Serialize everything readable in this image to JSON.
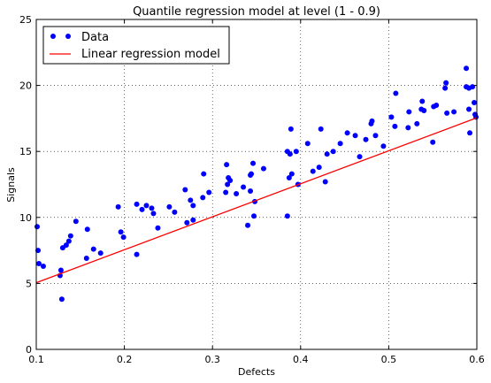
{
  "chart_data": {
    "type": "scatter",
    "title": "Quantile regression model at level (1 - 0.9)",
    "xlabel": "Defects",
    "ylabel": "Signals",
    "xlim": [
      0.1,
      0.6
    ],
    "ylim": [
      0,
      25
    ],
    "xticks": [
      0.1,
      0.2,
      0.3,
      0.4,
      0.5,
      0.6
    ],
    "xtick_labels": [
      "0.1",
      "0.2",
      "0.3",
      "0.4",
      "0.5",
      "0.6"
    ],
    "yticks": [
      0,
      5,
      10,
      15,
      20,
      25
    ],
    "ytick_labels": [
      "0",
      "5",
      "10",
      "15",
      "20",
      "25"
    ],
    "grid": true,
    "legend_position": "top-left",
    "series": [
      {
        "name": "Data",
        "kind": "points",
        "color": "#0000ff",
        "points": [
          [
            0.101,
            9.3
          ],
          [
            0.102,
            7.5
          ],
          [
            0.103,
            6.5
          ],
          [
            0.108,
            6.3
          ],
          [
            0.127,
            5.6
          ],
          [
            0.128,
            6.0
          ],
          [
            0.129,
            3.8
          ],
          [
            0.13,
            7.7
          ],
          [
            0.134,
            7.9
          ],
          [
            0.137,
            8.2
          ],
          [
            0.139,
            8.6
          ],
          [
            0.145,
            9.7
          ],
          [
            0.157,
            6.9
          ],
          [
            0.158,
            9.1
          ],
          [
            0.165,
            7.6
          ],
          [
            0.173,
            7.3
          ],
          [
            0.193,
            10.8
          ],
          [
            0.196,
            8.9
          ],
          [
            0.199,
            8.5
          ],
          [
            0.214,
            7.2
          ],
          [
            0.214,
            11.0
          ],
          [
            0.22,
            10.6
          ],
          [
            0.225,
            10.9
          ],
          [
            0.231,
            10.7
          ],
          [
            0.233,
            10.3
          ],
          [
            0.238,
            9.2
          ],
          [
            0.251,
            10.8
          ],
          [
            0.257,
            10.4
          ],
          [
            0.269,
            12.1
          ],
          [
            0.271,
            9.6
          ],
          [
            0.275,
            11.3
          ],
          [
            0.278,
            9.8
          ],
          [
            0.278,
            10.9
          ],
          [
            0.289,
            11.5
          ],
          [
            0.29,
            13.3
          ],
          [
            0.296,
            11.9
          ],
          [
            0.315,
            11.9
          ],
          [
            0.316,
            14.0
          ],
          [
            0.317,
            12.5
          ],
          [
            0.318,
            13.0
          ],
          [
            0.32,
            12.8
          ],
          [
            0.327,
            11.8
          ],
          [
            0.335,
            12.3
          ],
          [
            0.34,
            9.4
          ],
          [
            0.343,
            12.0
          ],
          [
            0.343,
            13.2
          ],
          [
            0.344,
            13.3
          ],
          [
            0.346,
            14.1
          ],
          [
            0.347,
            10.1
          ],
          [
            0.348,
            11.2
          ],
          [
            0.358,
            13.7
          ],
          [
            0.385,
            10.1
          ],
          [
            0.385,
            15.0
          ],
          [
            0.387,
            13.0
          ],
          [
            0.388,
            14.8
          ],
          [
            0.389,
            16.7
          ],
          [
            0.39,
            13.3
          ],
          [
            0.395,
            15.0
          ],
          [
            0.397,
            12.5
          ],
          [
            0.408,
            15.6
          ],
          [
            0.414,
            13.5
          ],
          [
            0.421,
            13.8
          ],
          [
            0.423,
            16.7
          ],
          [
            0.428,
            12.7
          ],
          [
            0.43,
            14.8
          ],
          [
            0.437,
            15.0
          ],
          [
            0.445,
            15.6
          ],
          [
            0.453,
            16.4
          ],
          [
            0.462,
            16.2
          ],
          [
            0.467,
            14.6
          ],
          [
            0.474,
            15.9
          ],
          [
            0.48,
            17.1
          ],
          [
            0.481,
            17.3
          ],
          [
            0.485,
            16.2
          ],
          [
            0.494,
            15.4
          ],
          [
            0.503,
            17.6
          ],
          [
            0.507,
            16.9
          ],
          [
            0.508,
            19.4
          ],
          [
            0.522,
            16.8
          ],
          [
            0.523,
            18.0
          ],
          [
            0.532,
            17.1
          ],
          [
            0.537,
            18.2
          ],
          [
            0.538,
            18.8
          ],
          [
            0.54,
            18.1
          ],
          [
            0.55,
            15.7
          ],
          [
            0.551,
            18.4
          ],
          [
            0.554,
            18.5
          ],
          [
            0.564,
            19.8
          ],
          [
            0.565,
            20.2
          ],
          [
            0.566,
            17.9
          ],
          [
            0.574,
            18.0
          ],
          [
            0.588,
            21.3
          ],
          [
            0.588,
            19.9
          ],
          [
            0.591,
            19.8
          ],
          [
            0.591,
            18.2
          ],
          [
            0.592,
            16.4
          ],
          [
            0.595,
            19.9
          ],
          [
            0.597,
            18.7
          ],
          [
            0.598,
            17.8
          ],
          [
            0.599,
            17.6
          ]
        ]
      },
      {
        "name": "Linear regression model",
        "kind": "line",
        "color": "#ff0000",
        "x": [
          0.1,
          0.6
        ],
        "y": [
          5.05,
          17.55
        ]
      }
    ]
  }
}
